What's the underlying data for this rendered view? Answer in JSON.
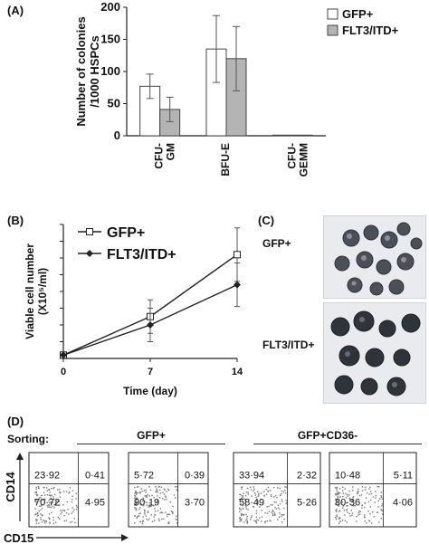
{
  "panels": {
    "a": "(A)",
    "b": "(B)",
    "c": "(C)",
    "d": "(D)"
  },
  "chart_data": [
    {
      "type": "bar",
      "panel": "A",
      "ylabel": "Number of colonies /1000 HSPCs",
      "ylim": [
        0,
        200
      ],
      "yticks": [
        0,
        50,
        100,
        150,
        200
      ],
      "categories": [
        "CFU-GM",
        "BFU-E",
        "CFU-GEMM"
      ],
      "category_labels": [
        [
          "CFU-",
          "GM"
        ],
        [
          "BFU-E"
        ],
        [
          "CFU-",
          "GEMM"
        ]
      ],
      "series": [
        {
          "name": "GFP+",
          "color": "#ffffff",
          "values": [
            77,
            135,
            1
          ],
          "errors": [
            19,
            52,
            0
          ]
        },
        {
          "name": "FLT3/ITD+",
          "color": "#b4b4b4",
          "values": [
            41,
            120,
            1
          ],
          "errors": [
            19,
            50,
            0
          ]
        }
      ],
      "legend": "top-right"
    },
    {
      "type": "line",
      "panel": "B",
      "xlabel": "Time (day)",
      "ylabel": "Viable cell number (X10⁵/ml)",
      "x": [
        0,
        7,
        14
      ],
      "xlim": [
        0,
        14
      ],
      "ylim": [
        0,
        40
      ],
      "yticks": [
        0,
        5,
        10,
        15,
        20,
        25,
        30,
        35,
        40
      ],
      "series": [
        {
          "name": "GFP+",
          "marker": "open-square",
          "values": [
            1,
            12.5,
            31
          ],
          "errors": [
            0,
            5,
            8
          ]
        },
        {
          "name": "FLT3/ITD+",
          "marker": "filled-diamond",
          "values": [
            1,
            10,
            22
          ],
          "errors": [
            0,
            5,
            6.5
          ]
        }
      ],
      "legend": "top-left"
    }
  ],
  "micrographs": {
    "top_label": "GFP+",
    "bottom_label": "FLT3/ITD+"
  },
  "flow": {
    "sorting_label": "Sorting:",
    "group1": "GFP+",
    "group2": "GFP+CD36-",
    "y_axis": "CD14",
    "x_axis": "CD15",
    "plots": [
      {
        "ul": "23·92",
        "ur": "0·41",
        "ll": "70·72",
        "lr": "4·95"
      },
      {
        "ul": "5·72",
        "ur": "0·39",
        "ll": "90·19",
        "lr": "3·70"
      },
      {
        "ul": "33·94",
        "ur": "2·32",
        "ll": "58·49",
        "lr": "5·26"
      },
      {
        "ul": "10·48",
        "ur": "5·11",
        "ll": "80·36",
        "lr": "4·06"
      }
    ]
  }
}
